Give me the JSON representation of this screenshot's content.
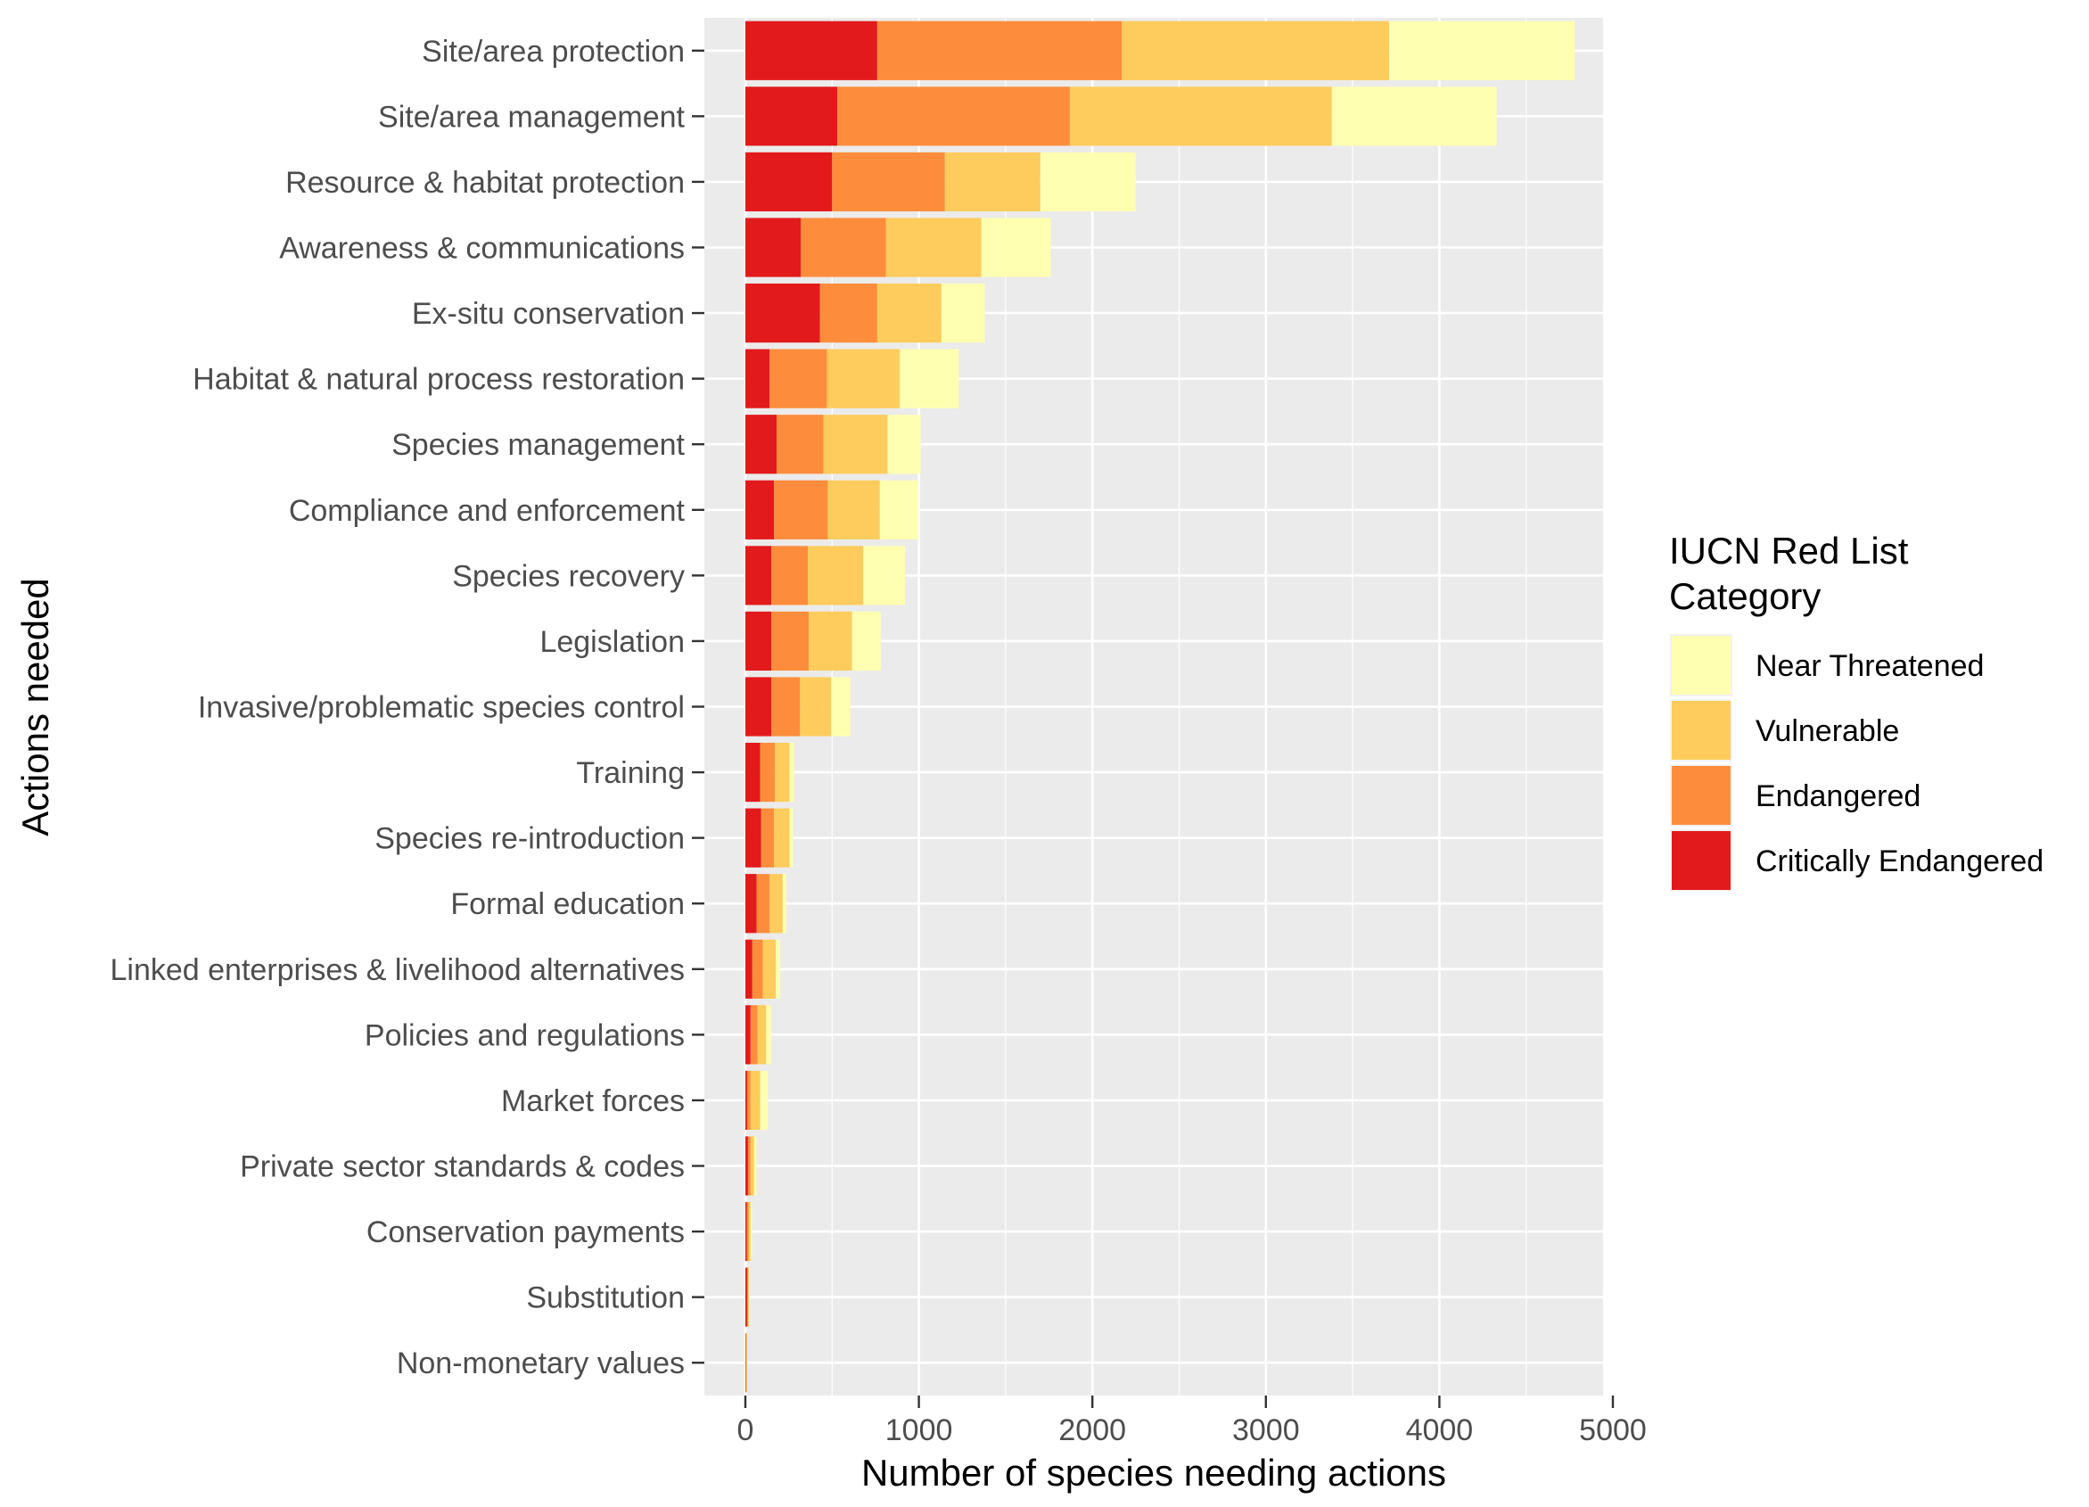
{
  "chart_data": {
    "type": "bar",
    "orientation": "horizontal",
    "stacked": true,
    "xlabel": "Number of species needing actions",
    "ylabel": "Actions needed",
    "xlim": [
      0,
      5000
    ],
    "x_ticks": [
      "0",
      "1000",
      "2000",
      "3000",
      "4000",
      "5000"
    ],
    "grid": true,
    "categories": [
      "Site/area protection",
      "Site/area management",
      "Resource & habitat protection",
      "Awareness & communications",
      "Ex-situ conservation",
      "Habitat & natural process restoration",
      "Species management",
      "Compliance and enforcement",
      "Species recovery",
      "Legislation",
      "Invasive/problematic species control",
      "Training",
      "Species re-introduction",
      "Formal education",
      "Linked enterprises & livelihood alternatives",
      "Policies and regulations",
      "Market forces",
      "Private sector standards & codes",
      "Conservation payments",
      "Substitution",
      "Non-monetary values"
    ],
    "series": [
      {
        "name": "Critically Endangered",
        "color": "#e31a1c",
        "values": [
          760,
          530,
          500,
          320,
          430,
          140,
          180,
          165,
          150,
          150,
          150,
          85,
          90,
          65,
          40,
          30,
          10,
          15,
          8,
          10,
          3
        ]
      },
      {
        "name": "Endangered",
        "color": "#fd8d3c",
        "values": [
          1410,
          1340,
          650,
          490,
          330,
          330,
          270,
          310,
          210,
          215,
          165,
          85,
          75,
          75,
          60,
          40,
          20,
          15,
          10,
          5,
          2
        ]
      },
      {
        "name": "Vulnerable",
        "color": "#fecc5c",
        "values": [
          1540,
          1510,
          550,
          550,
          370,
          420,
          370,
          300,
          320,
          250,
          180,
          85,
          90,
          75,
          75,
          50,
          55,
          20,
          12,
          7,
          5
        ]
      },
      {
        "name": "Near Threatened",
        "color": "#ffffb2",
        "values": [
          1070,
          950,
          550,
          400,
          250,
          340,
          190,
          220,
          240,
          165,
          110,
          25,
          20,
          20,
          25,
          30,
          45,
          15,
          8,
          3,
          2
        ]
      }
    ],
    "legend": {
      "title_lines": [
        "IUCN Red List",
        "Category"
      ],
      "placement": "right",
      "order": [
        "Near Threatened",
        "Vulnerable",
        "Endangered",
        "Critically Endangered"
      ]
    }
  }
}
